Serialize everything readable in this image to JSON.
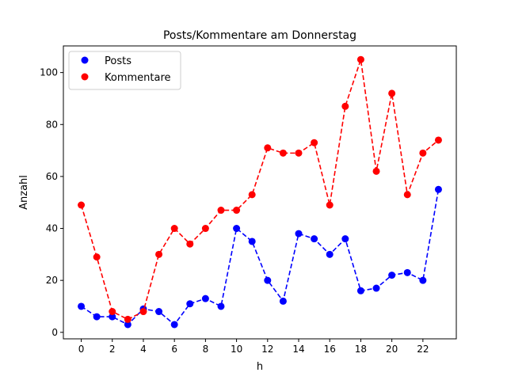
{
  "chart_data": {
    "type": "line",
    "title": "Posts/Kommentare am Donnerstag",
    "xlabel": "h",
    "ylabel": "Anzahl",
    "xlim": [
      -1.15,
      24.15
    ],
    "ylim": [
      -2.5,
      110.25
    ],
    "xticks": [
      0,
      2,
      4,
      6,
      8,
      10,
      12,
      14,
      16,
      18,
      20,
      22
    ],
    "yticks": [
      0,
      20,
      40,
      60,
      80,
      100
    ],
    "grid": false,
    "legend_position": "top-left",
    "x": [
      0,
      1,
      2,
      3,
      4,
      5,
      6,
      7,
      8,
      9,
      10,
      11,
      12,
      13,
      14,
      15,
      16,
      17,
      18,
      19,
      20,
      21,
      22,
      23
    ],
    "series": [
      {
        "name": "Posts",
        "color": "#0000ff",
        "values": [
          10,
          6,
          6,
          3,
          9,
          8,
          3,
          11,
          13,
          10,
          40,
          35,
          20,
          12,
          38,
          36,
          30,
          36,
          16,
          17,
          22,
          23,
          20,
          55
        ]
      },
      {
        "name": "Kommentare",
        "color": "#ff0000",
        "values": [
          49,
          29,
          8,
          5,
          8,
          30,
          40,
          34,
          40,
          47,
          47,
          53,
          71,
          69,
          69,
          73,
          49,
          87,
          105,
          62,
          92,
          53,
          69,
          74
        ]
      }
    ]
  }
}
